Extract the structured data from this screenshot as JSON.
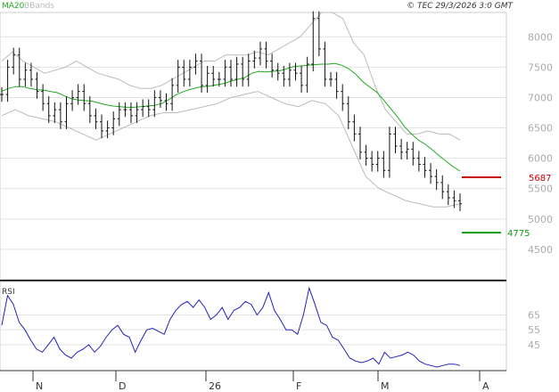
{
  "header": {
    "ma_label": "MA20",
    "bbands_label": "BBands",
    "copyright": "© TEC 29/3/2026 3:0 GMT"
  },
  "colors": {
    "price": "#111111",
    "ma20": "#22aa22",
    "bbands": "#bbbbbb",
    "rsi": "#2222bb",
    "resistance": "#cc0000",
    "support": "#119911",
    "grid": "#e2e2e2"
  },
  "chart_data": [
    {
      "type": "candlestick",
      "title": "",
      "ylim": [
        4000,
        8400
      ],
      "yticks": [
        "8000",
        "7500",
        "7000",
        "6500",
        "6000",
        "5500",
        "5000",
        "4500"
      ],
      "price": [
        7050,
        7500,
        7700,
        7300,
        7450,
        7300,
        7100,
        6900,
        6700,
        6800,
        6600,
        6900,
        7000,
        7100,
        6900,
        6700,
        6600,
        6450,
        6500,
        6650,
        6800,
        6800,
        6700,
        6800,
        6850,
        6800,
        7000,
        6950,
        6900,
        7200,
        7500,
        7300,
        7500,
        7600,
        7200,
        7400,
        7300,
        7300,
        7500,
        7300,
        7550,
        7300,
        7600,
        7650,
        7800,
        7600,
        7450,
        7400,
        7300,
        7450,
        7400,
        7200,
        7550,
        8300,
        7800,
        7300,
        7300,
        7100,
        6900,
        6600,
        6400,
        6100,
        6000,
        5900,
        6000,
        5800,
        6400,
        6200,
        6100,
        6150,
        6000,
        5900,
        5800,
        5700,
        5600,
        5450,
        5350,
        5300,
        5250
      ],
      "ma20": [
        7100,
        7150,
        7180,
        7180,
        7150,
        7130,
        7120,
        7100,
        7080,
        7030,
        6980,
        6960,
        6950,
        6940,
        6910,
        6880,
        6860,
        6850,
        6840,
        6840,
        6850,
        6860,
        6870,
        6900,
        6960,
        7040,
        7090,
        7130,
        7160,
        7180,
        7190,
        7210,
        7230,
        7270,
        7300,
        7330,
        7400,
        7430,
        7420,
        7430,
        7440,
        7470,
        7510,
        7520,
        7530,
        7540,
        7550,
        7550,
        7560,
        7530,
        7470,
        7380,
        7260,
        7170,
        7090,
        6960,
        6820,
        6680,
        6520,
        6400,
        6300,
        6230,
        6140,
        6040,
        5950,
        5860,
        5790
      ],
      "bb_upper": [
        7600,
        7750,
        7600,
        7500,
        7400,
        7450,
        7500,
        7600,
        7500,
        7400,
        7350,
        7300,
        7200,
        7150,
        7150,
        7200,
        7300,
        7400,
        7500,
        7600,
        7600,
        7700,
        7700,
        7700,
        7750,
        7700,
        7800,
        7900,
        8000,
        8200,
        8400,
        8400,
        8300,
        7900,
        7700,
        7200,
        6800,
        6600,
        6400,
        6400,
        6450,
        6400,
        6400,
        6300
      ],
      "bb_lower": [
        6700,
        6800,
        6700,
        6650,
        6600,
        6500,
        6400,
        6300,
        6400,
        6500,
        6600,
        6700,
        6750,
        6750,
        6800,
        6850,
        6900,
        7000,
        7050,
        7100,
        7000,
        6900,
        6850,
        6950,
        6900,
        6700,
        6200,
        5700,
        5500,
        5400,
        5300,
        5250,
        5200,
        5200,
        5250
      ],
      "levels": [
        {
          "label": "5687",
          "value": 5687,
          "role": "resistance"
        },
        {
          "label": "4775",
          "value": 4775,
          "role": "support"
        }
      ]
    },
    {
      "type": "line",
      "title": "RSI",
      "ylim": [
        30,
        85
      ],
      "yticks": [
        "65",
        "55",
        "45"
      ],
      "values": [
        58,
        78,
        72,
        60,
        55,
        48,
        42,
        40,
        45,
        50,
        42,
        38,
        36,
        40,
        42,
        45,
        40,
        44,
        50,
        55,
        58,
        52,
        50,
        40,
        48,
        55,
        56,
        54,
        52,
        62,
        68,
        72,
        74,
        70,
        75,
        70,
        62,
        65,
        70,
        62,
        68,
        70,
        74,
        72,
        65,
        70,
        80,
        68,
        62,
        55,
        55,
        52,
        65,
        83,
        72,
        60,
        58,
        50,
        48,
        42,
        36,
        34,
        33,
        34,
        36,
        32,
        40,
        36,
        37,
        38,
        40,
        38,
        34,
        32,
        31,
        30,
        31,
        32,
        32,
        31
      ]
    }
  ],
  "x_axis": {
    "labels": [
      "N",
      "D",
      "26",
      "F",
      "M",
      "A"
    ]
  }
}
